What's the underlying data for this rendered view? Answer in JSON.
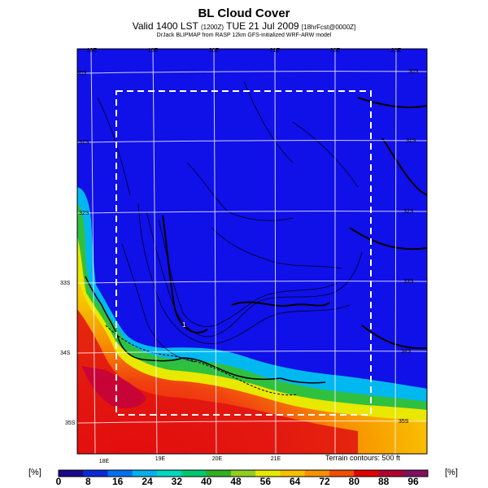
{
  "title": "BL Cloud Cover",
  "subtitle_main": "Valid 1400 LST",
  "subtitle_run": "(1200Z)",
  "subtitle_date": "TUE 21 Jul 2009",
  "subtitle_fcst": "[18hrFcst@0000Z]",
  "credit": "DrJack BLIPMAP from RASP 12km GFS-initialized WRF-ARW model",
  "terrain_note": "Terrain contours: 500 ft",
  "colorbar": {
    "unit_left": "[%]",
    "unit_right": "[%]",
    "ticks": [
      "0",
      "8",
      "16",
      "24",
      "32",
      "40",
      "48",
      "56",
      "64",
      "72",
      "80",
      "88",
      "96"
    ],
    "colors": [
      "#1a0a8c",
      "#0a2ad8",
      "#0070f0",
      "#00b0f0",
      "#00d8c0",
      "#00c870",
      "#30b020",
      "#90d020",
      "#e8e800",
      "#f8c000",
      "#f89000",
      "#f05000",
      "#e00000",
      "#b00030",
      "#801060"
    ]
  },
  "map_labels": {
    "top_lon": [
      "18E",
      "19E",
      "20E",
      "21E",
      "22E",
      "23E"
    ],
    "bottom_lon": [
      "18E",
      "19E",
      "20E",
      "21E"
    ],
    "left_lat": [
      "30S",
      "31S",
      "32S",
      "33S",
      "34S",
      "35S"
    ],
    "right_lat": [
      "30S",
      "31S",
      "32S",
      "33S",
      "34S",
      "35S"
    ]
  },
  "point_marker": "1",
  "colors": {
    "sea_blue": "#1010e8",
    "grid": "#ffffff",
    "contour": "#000000"
  }
}
